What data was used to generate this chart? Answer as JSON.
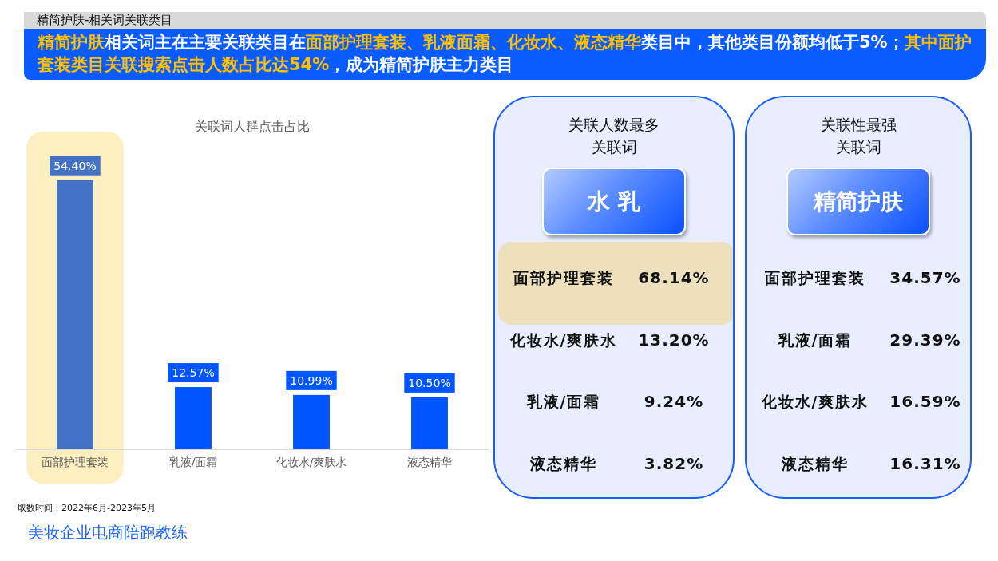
{
  "chart_data": [
    {
      "type": "bar",
      "title": "关联词人群点击占比",
      "categories": [
        "面部护理套装",
        "乳液/面霜",
        "化妆水/爽肤水",
        "液态精华"
      ],
      "values": [
        54.4,
        12.57,
        10.99,
        10.5
      ],
      "colors": [
        "#4472c4",
        "#0055ff",
        "#0055ff",
        "#0055ff"
      ],
      "value_labels": [
        "54.40%",
        "12.57%",
        "10.99%",
        "10.50%"
      ],
      "bands": [
        {
          "axis": "x",
          "from": "面部护理套装",
          "to": "面部护理套装",
          "color": "#fdefc0"
        }
      ],
      "annotations": [
        "精简护肤-相关词关联类目",
        "**精简护肤**相关词主在主要关联类目在**面部护理套装、乳液面霜、化妆水、液态精华**类目中，其他类目份额均低于5%；**其中面护套装类目关联搜索点击人数占比达54%**，成为精简护肤主力类目",
        "取数时间：2022年6月-2023年5月",
        "美妆企业电商陪跑教练"
      ]
    },
    {
      "type": "other",
      "title": "关联人数最多",
      "subtitle": "关联词",
      "annotations": [
        "水 乳"
      ],
      "categories": [
        "面部护理套装",
        "化妆水/爽肤水",
        "乳液/面霜",
        "液态精华"
      ],
      "values": [
        68.14,
        13.2,
        9.24,
        3.82
      ],
      "value_labels": [
        "68.14%",
        "13.20%",
        "9.24%",
        "3.82%"
      ],
      "colors": [
        "#ede0bc",
        null,
        null,
        null
      ]
    },
    {
      "type": "other",
      "title": "关联性最强",
      "subtitle": "关联词",
      "annotations": [
        "精简护肤"
      ],
      "categories": [
        "面部护理套装",
        "乳液/面霜",
        "化妆水/爽肤水",
        "液态精华"
      ],
      "values": [
        34.57,
        29.39,
        16.59,
        16.31
      ],
      "value_labels": [
        "34.57%",
        "29.39%",
        "16.59%",
        "16.31%"
      ]
    }
  ]
}
